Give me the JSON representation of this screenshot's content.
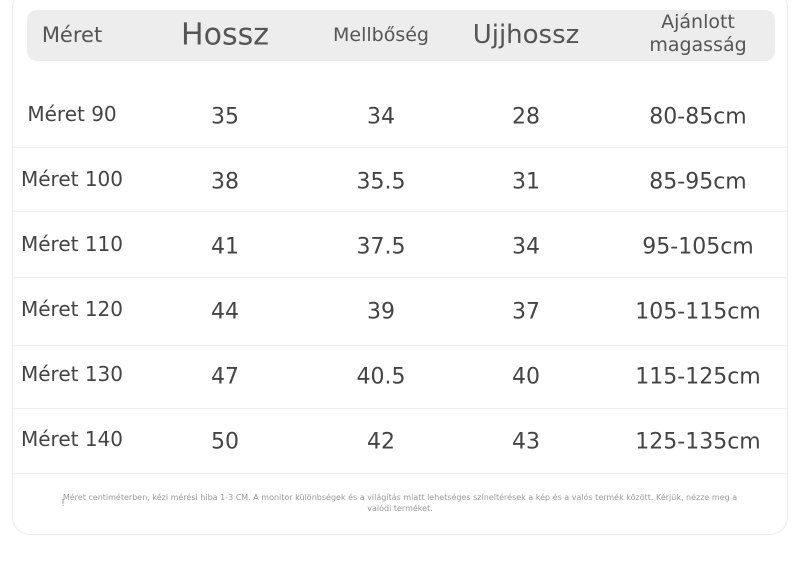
{
  "headers": [
    "Méret",
    "Hossz",
    "Mellbőség",
    "Ujjhossz",
    "Ajánlott magasság"
  ],
  "rows": [
    [
      "Méret 90",
      "35",
      "34",
      "28",
      "80-85cm"
    ],
    [
      "Méret 100",
      "38",
      "35.5",
      "31",
      "85-95cm"
    ],
    [
      "Méret 110",
      "41",
      "37.5",
      "34",
      "95-105cm"
    ],
    [
      "Méret 120",
      "44",
      "39",
      "37",
      "105-115cm"
    ],
    [
      "Méret 130",
      "47",
      "40.5",
      "40",
      "115-125cm"
    ],
    [
      "Méret 140",
      "50",
      "42",
      "43",
      "125-135cm"
    ]
  ],
  "footnote": "Méret centiméterben, kézi mérési hiba 1-3 CM. A monitor különbségek és a világítás miatt lehetséges színeltérések a kép és a valós termék között. Kérjük, nézze meg a valódi terméket.",
  "footnote_icon": "exclamation-icon"
}
